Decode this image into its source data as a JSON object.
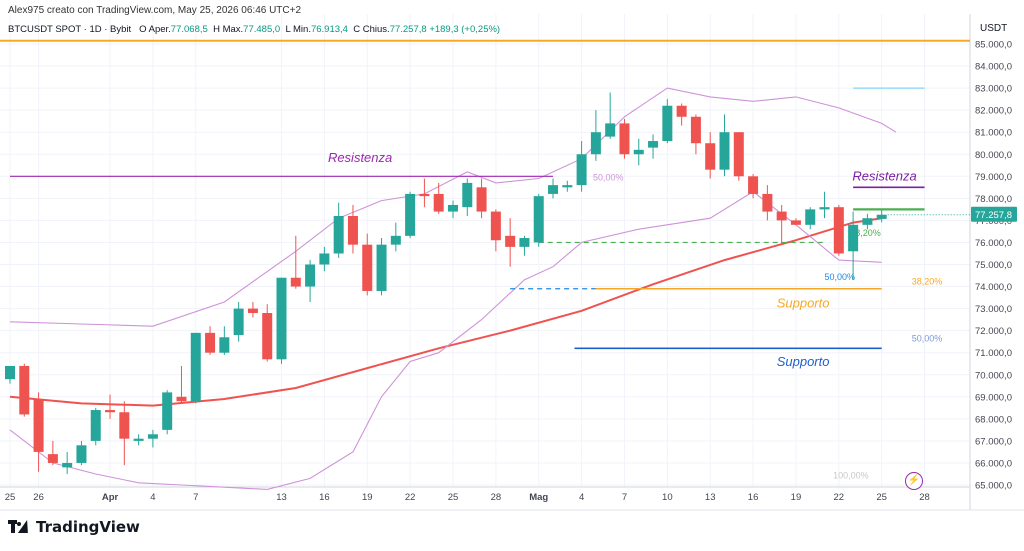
{
  "header": {
    "creator": "Alex975 creato con TradingView.com, May 25, 2026 06:46 UTC+2",
    "symbol": "BTCUSDT SPOT · 1D · Bybit",
    "open_key": "O",
    "open_lbl": "Aper.",
    "open_val": "77.068,5",
    "high_key": "H",
    "high_lbl": "Max.",
    "high_val": "77.485,0",
    "low_key": "L",
    "low_lbl": "Min.",
    "low_val": "76.913,4",
    "close_key": "C",
    "close_lbl": "Chius.",
    "close_val": "77.257,8",
    "change": "+189,3 (+0,25%)"
  },
  "brand": {
    "name": "TradingView"
  },
  "colors": {
    "up": "#26a69a",
    "down": "#ef5350",
    "ma": "#ef5350",
    "bb": "#ce93d8",
    "resistance": "#9c27b0",
    "support_yellow": "#f9a825",
    "support_blue": "#1e5fd0",
    "gold_line": "#f9a825"
  },
  "chart_data": {
    "type": "candlestick",
    "y_axis_title": "USDT",
    "ylim": [
      64800,
      85800
    ],
    "y_ticks": [
      65000,
      66000,
      67000,
      68000,
      69000,
      70000,
      71000,
      72000,
      73000,
      74000,
      75000,
      76000,
      77000,
      78000,
      79000,
      80000,
      81000,
      82000,
      83000,
      84000,
      85000
    ],
    "y_tick_labels": [
      "65.000,0",
      "66.000,0",
      "67.000,0",
      "68.000,0",
      "69.000,0",
      "70.000,0",
      "71.000,0",
      "72.000,0",
      "73.000,0",
      "74.000,0",
      "75.000,0",
      "76.000,0",
      "77.000,0",
      "78.000,0",
      "79.000,0",
      "80.000,0",
      "81.000,0",
      "82.000,0",
      "83.000,0",
      "84.000,0",
      "85.000,0"
    ],
    "x_ticks": [
      {
        "day": 0,
        "label": "25"
      },
      {
        "day": 2,
        "label": "26"
      },
      {
        "day": 7,
        "label": "Apr"
      },
      {
        "day": 10,
        "label": "4"
      },
      {
        "day": 13,
        "label": "7"
      },
      {
        "day": 19,
        "label": "13"
      },
      {
        "day": 22,
        "label": "16"
      },
      {
        "day": 25,
        "label": "19"
      },
      {
        "day": 28,
        "label": "22"
      },
      {
        "day": 31,
        "label": "25"
      },
      {
        "day": 34,
        "label": "28"
      },
      {
        "day": 37,
        "label": "Mag"
      },
      {
        "day": 40,
        "label": "4"
      },
      {
        "day": 43,
        "label": "7"
      },
      {
        "day": 46,
        "label": "10"
      },
      {
        "day": 49,
        "label": "13"
      },
      {
        "day": 52,
        "label": "16"
      },
      {
        "day": 55,
        "label": "19"
      },
      {
        "day": 58,
        "label": "22"
      },
      {
        "day": 61,
        "label": "25"
      },
      {
        "day": 64,
        "label": "28"
      }
    ],
    "candles": [
      {
        "d": 0,
        "o": 69800,
        "h": 70200,
        "l": 69600,
        "c": 70400
      },
      {
        "d": 1,
        "o": 70400,
        "h": 70500,
        "l": 68100,
        "c": 68200
      },
      {
        "d": 2,
        "o": 68900,
        "h": 69200,
        "l": 65600,
        "c": 66500
      },
      {
        "d": 3,
        "o": 66400,
        "h": 67000,
        "l": 65900,
        "c": 66000
      },
      {
        "d": 4,
        "o": 65800,
        "h": 66500,
        "l": 65500,
        "c": 66000
      },
      {
        "d": 5,
        "o": 66000,
        "h": 67000,
        "l": 65900,
        "c": 66800
      },
      {
        "d": 6,
        "o": 67000,
        "h": 68500,
        "l": 66800,
        "c": 68400
      },
      {
        "d": 7,
        "o": 68400,
        "h": 69100,
        "l": 68000,
        "c": 68300
      },
      {
        "d": 8,
        "o": 68300,
        "h": 68800,
        "l": 65900,
        "c": 67100
      },
      {
        "d": 9,
        "o": 67000,
        "h": 67300,
        "l": 66800,
        "c": 67100
      },
      {
        "d": 10,
        "o": 67100,
        "h": 67500,
        "l": 66700,
        "c": 67300
      },
      {
        "d": 11,
        "o": 67500,
        "h": 69300,
        "l": 67300,
        "c": 69200
      },
      {
        "d": 12,
        "o": 69000,
        "h": 70400,
        "l": 68700,
        "c": 68800
      },
      {
        "d": 13,
        "o": 68800,
        "h": 71900,
        "l": 68700,
        "c": 71900
      },
      {
        "d": 14,
        "o": 71900,
        "h": 72200,
        "l": 70900,
        "c": 71000
      },
      {
        "d": 15,
        "o": 71000,
        "h": 72200,
        "l": 70900,
        "c": 71700
      },
      {
        "d": 16,
        "o": 71800,
        "h": 73300,
        "l": 71500,
        "c": 73000
      },
      {
        "d": 17,
        "o": 73000,
        "h": 73300,
        "l": 72600,
        "c": 72800
      },
      {
        "d": 18,
        "o": 72800,
        "h": 73200,
        "l": 70600,
        "c": 70700
      },
      {
        "d": 19,
        "o": 70700,
        "h": 74400,
        "l": 70500,
        "c": 74400
      },
      {
        "d": 20,
        "o": 74400,
        "h": 76300,
        "l": 73900,
        "c": 74000
      },
      {
        "d": 21,
        "o": 74000,
        "h": 75200,
        "l": 73300,
        "c": 75000
      },
      {
        "d": 22,
        "o": 75000,
        "h": 75800,
        "l": 74700,
        "c": 75500
      },
      {
        "d": 23,
        "o": 75500,
        "h": 77800,
        "l": 75300,
        "c": 77200
      },
      {
        "d": 24,
        "o": 77200,
        "h": 77700,
        "l": 75500,
        "c": 75900
      },
      {
        "d": 25,
        "o": 75900,
        "h": 76400,
        "l": 73600,
        "c": 73800
      },
      {
        "d": 26,
        "o": 73800,
        "h": 76200,
        "l": 73600,
        "c": 75900
      },
      {
        "d": 27,
        "o": 75900,
        "h": 76900,
        "l": 75600,
        "c": 76300
      },
      {
        "d": 28,
        "o": 76300,
        "h": 78300,
        "l": 76200,
        "c": 78200
      },
      {
        "d": 29,
        "o": 78200,
        "h": 78900,
        "l": 77600,
        "c": 78100
      },
      {
        "d": 30,
        "o": 78200,
        "h": 78700,
        "l": 77300,
        "c": 77400
      },
      {
        "d": 31,
        "o": 77400,
        "h": 77900,
        "l": 77100,
        "c": 77700
      },
      {
        "d": 32,
        "o": 77600,
        "h": 78900,
        "l": 77200,
        "c": 78700
      },
      {
        "d": 33,
        "o": 78500,
        "h": 78900,
        "l": 77100,
        "c": 77400
      },
      {
        "d": 34,
        "o": 77400,
        "h": 77500,
        "l": 75600,
        "c": 76100
      },
      {
        "d": 35,
        "o": 76300,
        "h": 77100,
        "l": 74900,
        "c": 75800
      },
      {
        "d": 36,
        "o": 75800,
        "h": 76300,
        "l": 75400,
        "c": 76200
      },
      {
        "d": 37,
        "o": 76000,
        "h": 78200,
        "l": 75800,
        "c": 78100
      },
      {
        "d": 38,
        "o": 78200,
        "h": 78900,
        "l": 78000,
        "c": 78600
      },
      {
        "d": 39,
        "o": 78500,
        "h": 78800,
        "l": 78300,
        "c": 78600
      },
      {
        "d": 40,
        "o": 78600,
        "h": 80600,
        "l": 78300,
        "c": 80000
      },
      {
        "d": 41,
        "o": 80000,
        "h": 82000,
        "l": 79700,
        "c": 81000
      },
      {
        "d": 42,
        "o": 80800,
        "h": 82800,
        "l": 80700,
        "c": 81400
      },
      {
        "d": 43,
        "o": 81400,
        "h": 81600,
        "l": 79800,
        "c": 80000
      },
      {
        "d": 44,
        "o": 80000,
        "h": 80700,
        "l": 79500,
        "c": 80200
      },
      {
        "d": 45,
        "o": 80300,
        "h": 80900,
        "l": 79800,
        "c": 80600
      },
      {
        "d": 46,
        "o": 80600,
        "h": 82500,
        "l": 80500,
        "c": 82200
      },
      {
        "d": 47,
        "o": 82200,
        "h": 82300,
        "l": 81300,
        "c": 81700
      },
      {
        "d": 48,
        "o": 81700,
        "h": 81800,
        "l": 80000,
        "c": 80500
      },
      {
        "d": 49,
        "o": 80500,
        "h": 81000,
        "l": 78900,
        "c": 79300
      },
      {
        "d": 50,
        "o": 79300,
        "h": 81800,
        "l": 79000,
        "c": 81000
      },
      {
        "d": 51,
        "o": 81000,
        "h": 81000,
        "l": 78800,
        "c": 79000
      },
      {
        "d": 52,
        "o": 79000,
        "h": 79100,
        "l": 78000,
        "c": 78200
      },
      {
        "d": 53,
        "o": 78200,
        "h": 78600,
        "l": 77000,
        "c": 77400
      },
      {
        "d": 54,
        "o": 77400,
        "h": 77700,
        "l": 75900,
        "c": 77000
      },
      {
        "d": 55,
        "o": 77000,
        "h": 77100,
        "l": 76800,
        "c": 76800
      },
      {
        "d": 56,
        "o": 76800,
        "h": 77600,
        "l": 76600,
        "c": 77500
      },
      {
        "d": 57,
        "o": 77500,
        "h": 78300,
        "l": 77100,
        "c": 77600
      },
      {
        "d": 58,
        "o": 77600,
        "h": 77700,
        "l": 75400,
        "c": 75500
      },
      {
        "d": 59,
        "o": 75600,
        "h": 77400,
        "l": 74300,
        "c": 76800
      },
      {
        "d": 60,
        "o": 76800,
        "h": 77300,
        "l": 76600,
        "c": 77100
      },
      {
        "d": 61,
        "o": 77068,
        "h": 77485,
        "l": 76913,
        "c": 77258
      }
    ],
    "series": [
      {
        "name": "",
        "kind": "ma",
        "points": [
          [
            0,
            69000
          ],
          [
            5,
            68700
          ],
          [
            10,
            68600
          ],
          [
            15,
            68900
          ],
          [
            20,
            69400
          ],
          [
            25,
            70300
          ],
          [
            30,
            71200
          ],
          [
            35,
            72000
          ],
          [
            40,
            72900
          ],
          [
            45,
            74100
          ],
          [
            50,
            75200
          ],
          [
            55,
            76100
          ],
          [
            59,
            76900
          ],
          [
            61,
            77100
          ]
        ]
      },
      {
        "name": "",
        "kind": "bb_upper",
        "points": [
          [
            0,
            72400
          ],
          [
            5,
            72300
          ],
          [
            10,
            72200
          ],
          [
            15,
            73300
          ],
          [
            20,
            75600
          ],
          [
            23,
            77100
          ],
          [
            26,
            77900
          ],
          [
            29,
            78200
          ],
          [
            32,
            79200
          ],
          [
            34,
            78700
          ],
          [
            37,
            78900
          ],
          [
            40,
            79800
          ],
          [
            43,
            81700
          ],
          [
            46,
            83000
          ],
          [
            49,
            82600
          ],
          [
            52,
            82400
          ],
          [
            55,
            82600
          ],
          [
            58,
            82100
          ],
          [
            61,
            81400
          ],
          [
            62,
            81000
          ]
        ]
      },
      {
        "name": "",
        "kind": "bb_lower",
        "points": [
          [
            0,
            67500
          ],
          [
            3,
            66000
          ],
          [
            6,
            65500
          ],
          [
            9,
            65100
          ],
          [
            12,
            65000
          ],
          [
            15,
            64900
          ],
          [
            18,
            64800
          ],
          [
            21,
            65300
          ],
          [
            24,
            66500
          ],
          [
            26,
            69000
          ],
          [
            28,
            70600
          ],
          [
            30,
            71000
          ],
          [
            33,
            72500
          ],
          [
            36,
            74300
          ],
          [
            38,
            74900
          ],
          [
            40,
            76000
          ],
          [
            44,
            76600
          ],
          [
            49,
            77100
          ],
          [
            52,
            78300
          ],
          [
            55,
            76800
          ],
          [
            58,
            75200
          ],
          [
            61,
            75100
          ]
        ]
      }
    ],
    "levels": [
      {
        "kind": "gold",
        "y": 85150,
        "color": "#f9a825"
      },
      {
        "kind": "resistance-line-left",
        "y": 79000,
        "x_from": 0,
        "x_to": 38,
        "color": "#9c27b0",
        "label": "Resistenza",
        "label_x": 24.5,
        "label_y": 79650
      },
      {
        "kind": "fib",
        "y": 79000,
        "label": "50,00%",
        "label_x": 40.8,
        "color": "#ce93d8"
      },
      {
        "kind": "resistance-line-right",
        "y": 78500,
        "x_from": 59,
        "x_to": 64,
        "color": "#7b1fa2",
        "label": "Resistenza",
        "label_x": 61.2,
        "label_y": 78800
      },
      {
        "kind": "fib",
        "y": 83000,
        "x_from": 59,
        "x_to": 64,
        "label": "",
        "color": "#81d4fa"
      },
      {
        "kind": "fib",
        "y": 77500,
        "x_from": 59,
        "x_to": 64,
        "label": "",
        "color": "#4caf50"
      },
      {
        "kind": "fib-dashed",
        "y": 76000,
        "x_from": 37,
        "x_to": 57,
        "label": "38,20%",
        "label_x": 58.8,
        "label_y": 76300,
        "color": "#4caf50"
      },
      {
        "kind": "fib-dashed-blue",
        "y": 73900,
        "x_from": 35,
        "x_to": 41,
        "label": "50,00%",
        "label_x": 57,
        "label_y": 74300,
        "color": "#1e88e5"
      },
      {
        "kind": "support-line-yellow",
        "y": 73900,
        "x_from": 41,
        "x_to": 61,
        "label": "Supporto",
        "label_x": 55.5,
        "label_y": 73050,
        "color": "#f9a825"
      },
      {
        "kind": "fib",
        "y": 73900,
        "label": "38,20%",
        "label_x": 63.1,
        "label_y": 74100,
        "color": "#f9a825"
      },
      {
        "kind": "support-line-blue",
        "y": 71200,
        "x_from": 39.5,
        "x_to": 61,
        "label": "Supporto",
        "label_x": 55.5,
        "label_y": 70400,
        "color": "#1e5fd0"
      },
      {
        "kind": "fib",
        "y": 71200,
        "label": "50,00%",
        "label_x": 63.1,
        "label_y": 71500,
        "color": "#7e9ad4"
      },
      {
        "kind": "fib",
        "y": 65200,
        "label": "100,00%",
        "label_x": 57.6,
        "label_y": 65300,
        "color": "#c8c8c8"
      }
    ],
    "last_price": {
      "value": 77258,
      "label": "77.257,8"
    }
  }
}
